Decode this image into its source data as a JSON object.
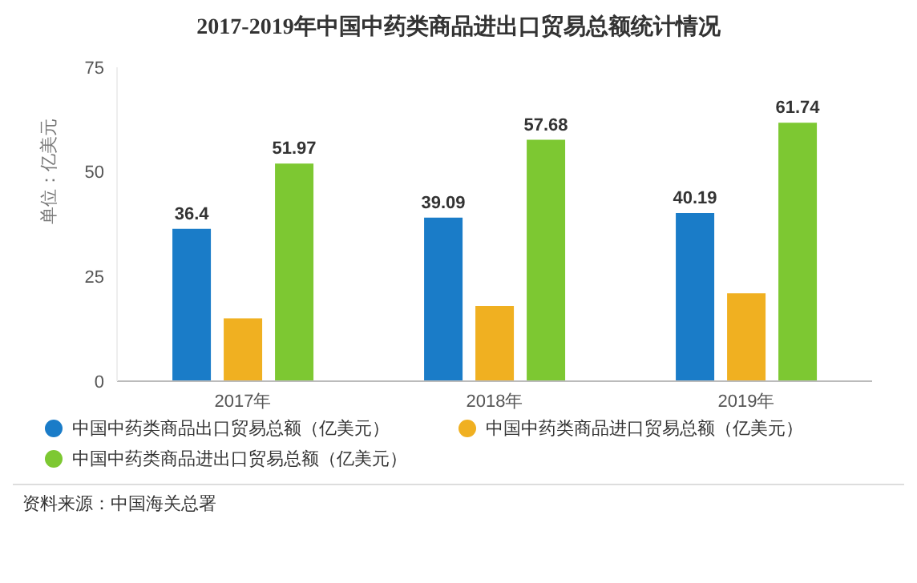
{
  "chart_data": {
    "type": "bar",
    "title": "2017-2019年中国中药类商品进出口贸易总额统计情况",
    "ylabel": "单位：亿美元",
    "categories": [
      "2017年",
      "2018年",
      "2019年"
    ],
    "series": [
      {
        "name": "中国中药类商品出口贸易总额（亿美元）",
        "color": "#1a7cc8",
        "values": [
          36.4,
          39.09,
          40.19
        ],
        "value_labels": [
          "36.4",
          "39.09",
          "40.19"
        ]
      },
      {
        "name": "中国中药类商品进口贸易总额（亿美元）",
        "color": "#f0b021",
        "values": [
          15,
          18,
          21
        ]
      },
      {
        "name": "中国中药类商品进出口贸易总额（亿美元）",
        "color": "#7dc832",
        "values": [
          51.97,
          57.68,
          61.74
        ],
        "value_labels": [
          "51.97",
          "57.68",
          "61.74"
        ]
      }
    ],
    "ylim": [
      0,
      75
    ],
    "yticks": [
      0,
      25,
      50,
      75
    ],
    "grid": false,
    "legend": "bottom",
    "annotations": [
      "资料来源：中国海关总署"
    ]
  }
}
